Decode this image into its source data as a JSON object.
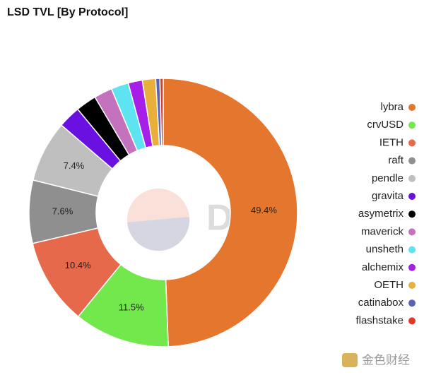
{
  "chart_data": {
    "type": "donut",
    "title": "LSD TVL [By Protocol]",
    "categories": [
      "lybra",
      "crvUSD",
      "IETH",
      "raft",
      "pendle",
      "gravita",
      "asymetrix",
      "maverick",
      "unsheth",
      "alchemix",
      "OETH",
      "catinabox",
      "flashstake"
    ],
    "values": [
      49.4,
      11.5,
      10.4,
      7.6,
      7.4,
      2.7,
      2.5,
      2.2,
      2.1,
      1.7,
      1.6,
      0.5,
      0.4
    ],
    "value_labels": [
      "49.4%",
      "11.5%",
      "10.4%",
      "7.6%",
      "7.4%",
      null,
      null,
      null,
      null,
      null,
      null,
      null,
      null
    ],
    "colors": [
      "#e5762d",
      "#72e84c",
      "#e5694a",
      "#8f8f8f",
      "#c0bfbf",
      "#6a10e0",
      "#000000",
      "#c472bd",
      "#5ee3f0",
      "#a61fe8",
      "#e8b03a",
      "#5a62b5",
      "#e03a2a"
    ],
    "legend": "right"
  },
  "watermark": "Dune",
  "footer_logo": "金色财经"
}
